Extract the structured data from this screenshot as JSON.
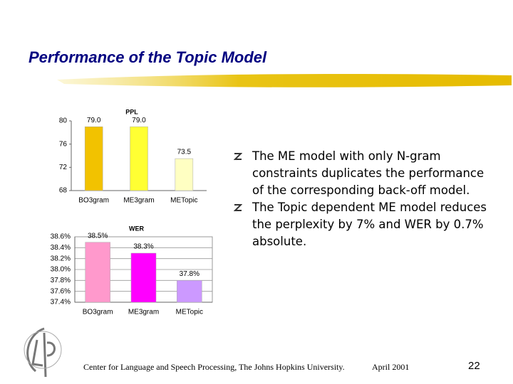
{
  "title": "Performance of the Topic Model",
  "chart_data": [
    {
      "type": "bar",
      "title": "PPL",
      "categories": [
        "BO3gram",
        "ME3gram",
        "METopic"
      ],
      "values": [
        79.0,
        79.0,
        73.5
      ],
      "value_labels": [
        "79.0",
        "79.0",
        "73.5"
      ],
      "colors": [
        "#f2c200",
        "#ffff33",
        "#ffffc2"
      ],
      "ylim": [
        68,
        80
      ],
      "yticks": [
        68,
        72,
        76,
        80
      ],
      "grid": false
    },
    {
      "type": "bar",
      "title": "WER",
      "categories": [
        "BO3gram",
        "ME3gram",
        "METopic"
      ],
      "values": [
        38.5,
        38.3,
        37.8
      ],
      "value_labels": [
        "38.5%",
        "38.3%",
        "37.8%"
      ],
      "colors": [
        "#ff99cc",
        "#ff00ff",
        "#cc99ff"
      ],
      "ylim": [
        37.4,
        38.6
      ],
      "yticks": [
        {
          "value": 37.4,
          "label": "37.4%"
        },
        {
          "value": 37.6,
          "label": "37.6%"
        },
        {
          "value": 37.8,
          "label": "37.8%"
        },
        {
          "value": 38.0,
          "label": "38.0%"
        },
        {
          "value": 38.2,
          "label": "38.2%"
        },
        {
          "value": 38.4,
          "label": "38.4%"
        },
        {
          "value": 38.6,
          "label": "38.6%"
        }
      ],
      "grid": true
    }
  ],
  "bullets": [
    "The ME model with only N-gram constraints duplicates the performance of the corresponding back-off model.",
    "The Topic dependent ME model reduces the perplexity by 7% and WER by 0.7% absolute."
  ],
  "footer": {
    "text": "Center for Language and Speech Processing, The Johns Hopkins University.",
    "date": "April 2001",
    "page": "22"
  }
}
